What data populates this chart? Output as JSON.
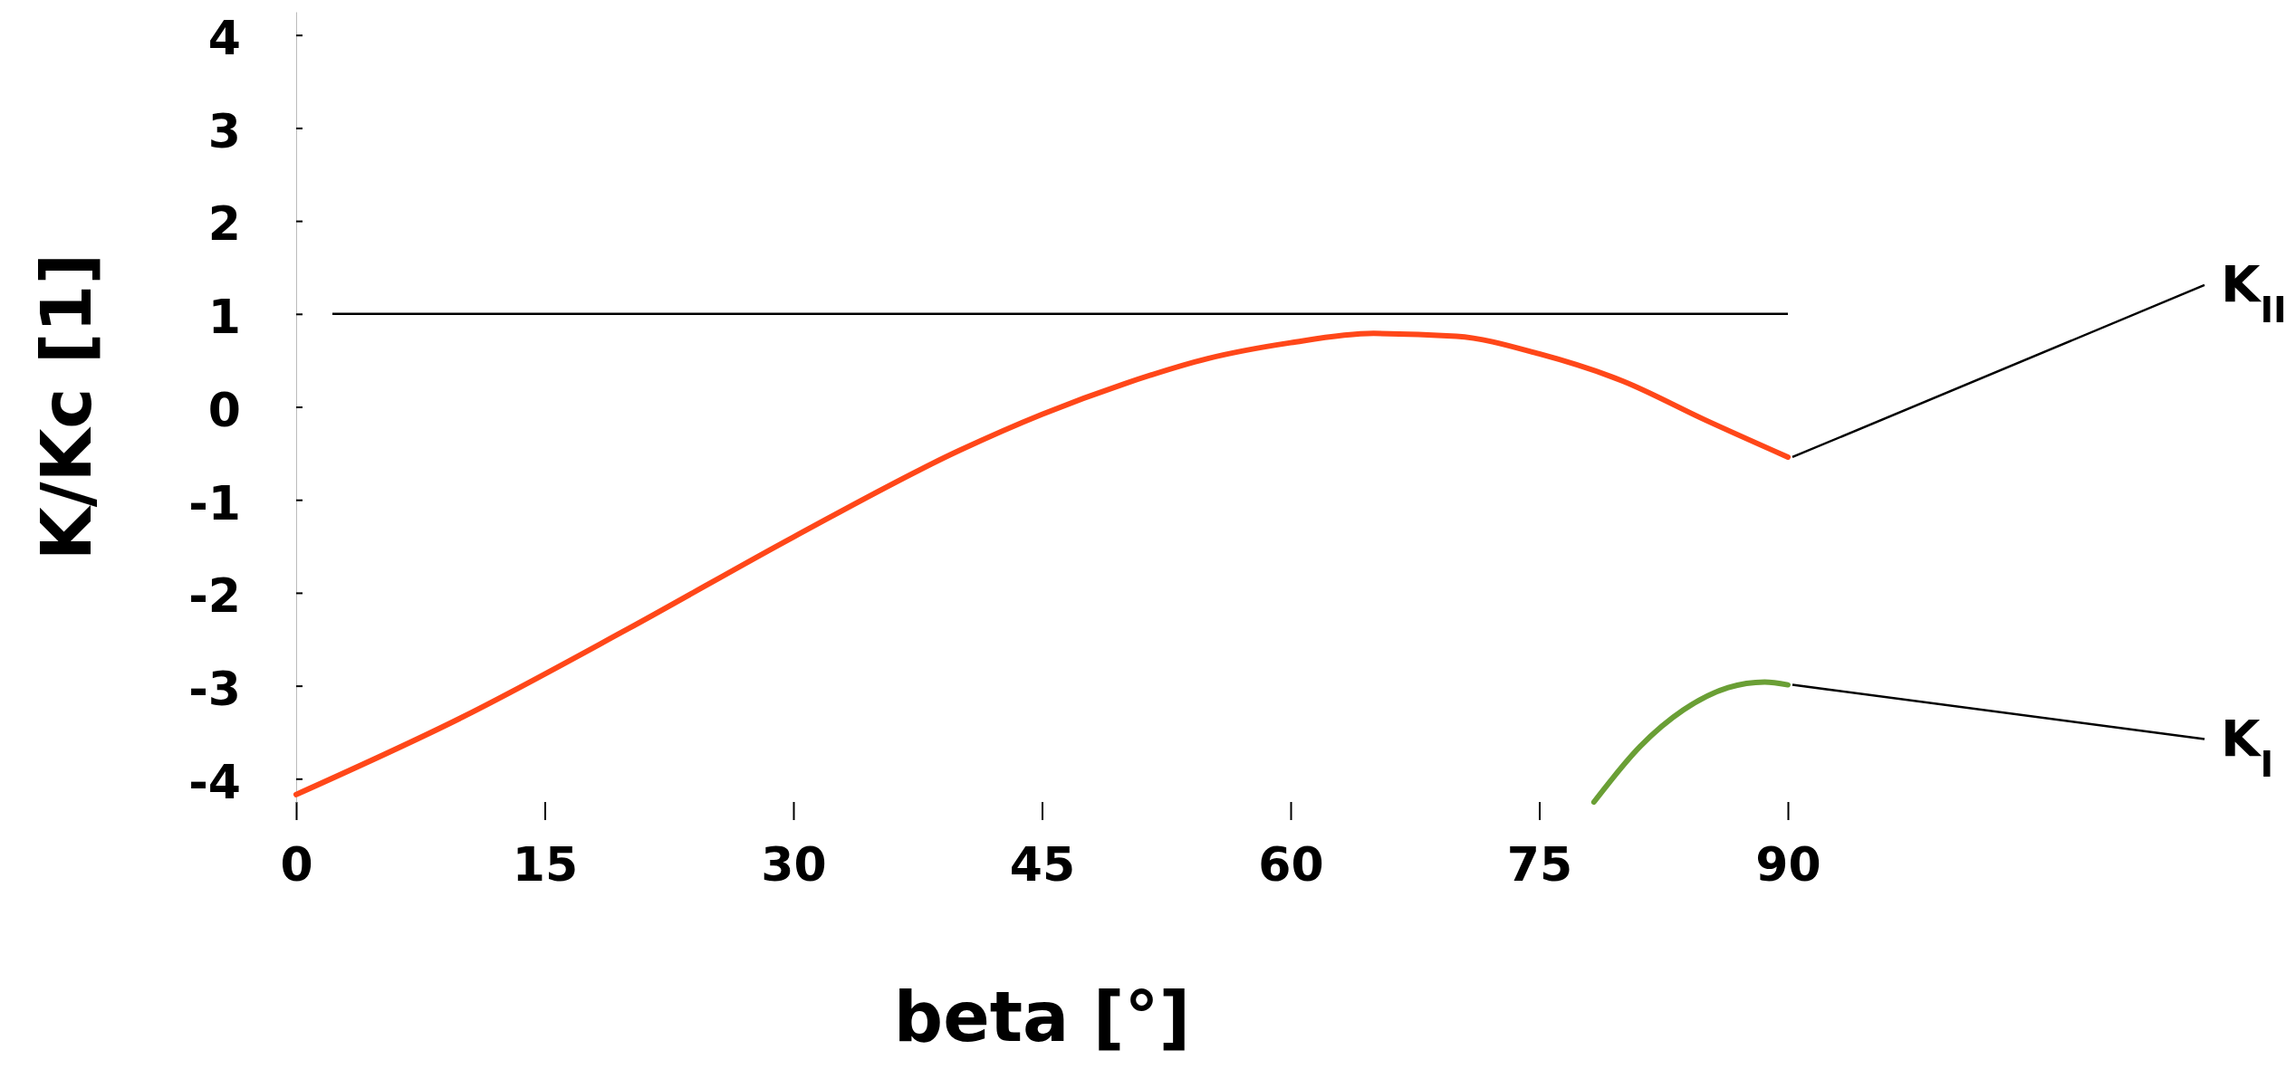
{
  "chart_data": {
    "type": "line",
    "xlabel": "beta [°]",
    "ylabel": "K/Kc [1]",
    "xlim": [
      0,
      90
    ],
    "xticks": [
      0,
      15,
      30,
      45,
      60,
      75,
      90
    ],
    "ylim": [
      -4.25,
      4.25
    ],
    "yticks": [
      -4,
      -3,
      -2,
      -1,
      0,
      1,
      2,
      3,
      4
    ],
    "grid": false,
    "series": [
      {
        "color": "#ff4719",
        "x": [
          0,
          10,
          20,
          30,
          40,
          45,
          50,
          55,
          60,
          65,
          70,
          75,
          80,
          85,
          90
        ],
        "values": [
          -4.17,
          -3.34,
          -2.39,
          -1.4,
          -0.47,
          -0.08,
          0.25,
          0.52,
          0.69,
          0.79,
          0.76,
          0.57,
          0.28,
          -0.14,
          -0.54
        ]
      },
      {
        "color": "#6a9f35",
        "x": [
          78.3,
          81.1,
          83.7,
          86.4,
          88.6,
          90
        ],
        "values": [
          -4.25,
          -3.65,
          -3.26,
          -3.02,
          -2.96,
          -2.99
        ]
      }
    ],
    "ref_lines": [
      {
        "axis": "y",
        "value": 1,
        "color": "#000000"
      }
    ],
    "annotations": [
      {
        "text": "K$_{II}$",
        "x": 90,
        "y": -0.54
      },
      {
        "text": "K$_{I}$",
        "x": 90,
        "y": -2.99
      }
    ]
  }
}
